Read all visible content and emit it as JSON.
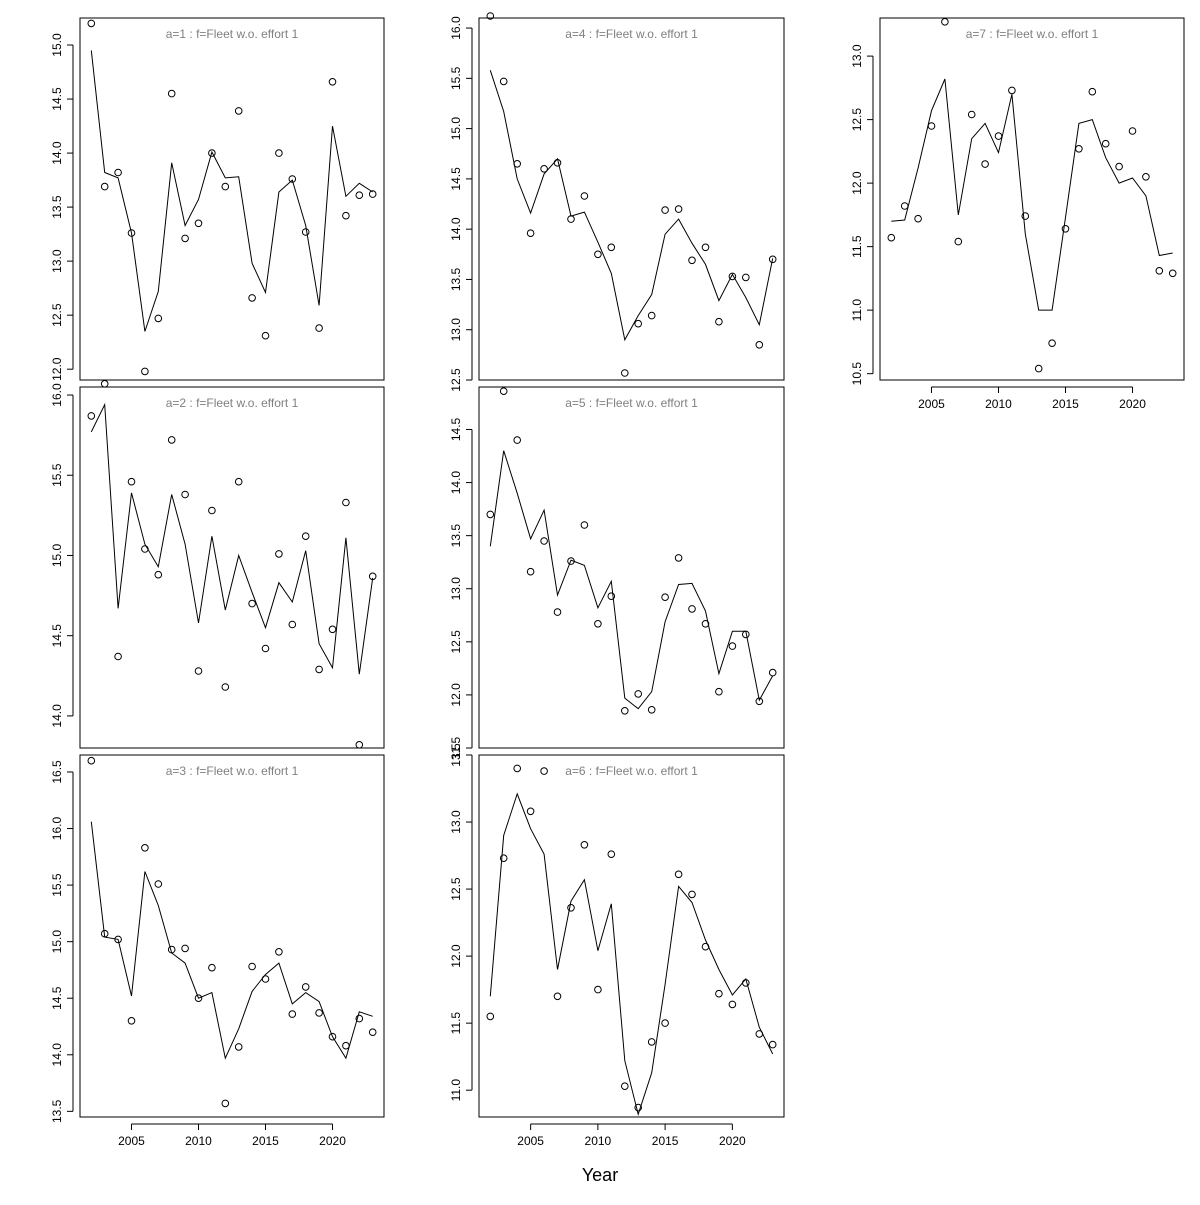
{
  "chart_data": {
    "type": "line",
    "x_axis_label": "Year",
    "x_ticks": [
      2005,
      2010,
      2015,
      2020
    ],
    "years": [
      2002,
      2003,
      2004,
      2005,
      2006,
      2007,
      2008,
      2009,
      2010,
      2011,
      2012,
      2013,
      2014,
      2015,
      2016,
      2017,
      2018,
      2019,
      2020,
      2021,
      2022,
      2023
    ],
    "panels": [
      {
        "title": "a=1  :  f=Fleet w.o. effort 1",
        "ylim": [
          11.9,
          15.25
        ],
        "y_ticks": [
          12.0,
          12.5,
          13.0,
          13.5,
          14.0,
          14.5,
          15.0
        ],
        "y_tick_labels": [
          "12.0",
          "12.5",
          "13.0",
          "13.5",
          "14.0",
          "14.5",
          "15.0"
        ],
        "fitted": [
          14.95,
          13.82,
          13.77,
          13.26,
          12.35,
          12.72,
          13.91,
          13.33,
          13.57,
          14.01,
          13.77,
          13.78,
          12.98,
          12.71,
          13.64,
          13.75,
          13.33,
          12.59,
          14.25,
          13.6,
          13.72,
          13.64
        ],
        "observed": [
          15.2,
          13.69,
          13.82,
          13.26,
          11.98,
          12.47,
          14.55,
          13.21,
          13.35,
          14.0,
          13.69,
          14.39,
          12.66,
          12.31,
          14.0,
          13.76,
          13.27,
          12.38,
          14.66,
          13.42,
          13.61,
          13.62
        ]
      },
      {
        "title": "a=2  :  f=Fleet w.o. effort 1",
        "ylim": [
          13.8,
          16.05
        ],
        "y_ticks": [
          14.0,
          14.5,
          15.0,
          15.5,
          16.0
        ],
        "y_tick_labels": [
          "14.0",
          "14.5",
          "15.0",
          "15.5",
          "16.0"
        ],
        "fitted": [
          15.77,
          15.94,
          14.67,
          15.39,
          15.07,
          14.93,
          15.38,
          15.07,
          14.58,
          15.12,
          14.66,
          15.0,
          14.77,
          14.55,
          14.83,
          14.71,
          15.03,
          14.45,
          14.3,
          15.11,
          14.26,
          14.86
        ],
        "observed": [
          15.87,
          16.07,
          14.37,
          15.46,
          15.04,
          14.88,
          15.72,
          15.38,
          14.28,
          15.28,
          14.18,
          15.46,
          14.7,
          14.42,
          15.01,
          14.57,
          15.12,
          14.29,
          14.54,
          15.33,
          13.82,
          14.87
        ]
      },
      {
        "title": "a=3  :  f=Fleet w.o. effort 1",
        "ylim": [
          13.45,
          16.65
        ],
        "y_ticks": [
          13.5,
          14.0,
          14.5,
          15.0,
          15.5,
          16.0,
          16.5
        ],
        "y_tick_labels": [
          "13.5",
          "14.0",
          "14.5",
          "15.0",
          "15.5",
          "16.0",
          "16.5"
        ],
        "fitted": [
          16.06,
          15.04,
          15.02,
          14.52,
          15.62,
          15.32,
          14.9,
          14.81,
          14.5,
          14.55,
          13.97,
          14.23,
          14.56,
          14.71,
          14.81,
          14.45,
          14.55,
          14.47,
          14.16,
          13.97,
          14.38,
          14.34
        ],
        "observed": [
          16.6,
          15.07,
          15.02,
          14.3,
          15.83,
          15.51,
          14.93,
          14.94,
          14.5,
          14.77,
          13.57,
          14.07,
          14.78,
          14.67,
          14.91,
          14.36,
          14.6,
          14.37,
          14.16,
          14.08,
          14.32,
          14.2
        ]
      },
      {
        "title": "a=4  :  f=Fleet w.o. effort 1",
        "ylim": [
          12.5,
          16.1
        ],
        "y_ticks": [
          12.5,
          13.0,
          13.5,
          14.0,
          14.5,
          15.0,
          15.5,
          16.0
        ],
        "y_tick_labels": [
          "12.5",
          "13.0",
          "13.5",
          "14.0",
          "14.5",
          "15.0",
          "15.5",
          "16.0"
        ],
        "fitted": [
          15.58,
          15.17,
          14.5,
          14.16,
          14.55,
          14.7,
          14.13,
          14.17,
          13.87,
          13.56,
          12.9,
          13.14,
          13.35,
          13.95,
          14.1,
          13.86,
          13.65,
          13.29,
          13.55,
          13.32,
          13.05,
          13.71
        ],
        "observed": [
          16.12,
          15.47,
          14.65,
          13.96,
          14.6,
          14.66,
          14.1,
          14.33,
          13.75,
          13.82,
          12.57,
          13.06,
          13.14,
          14.19,
          14.2,
          13.69,
          13.82,
          13.08,
          13.53,
          13.52,
          12.85,
          13.7
        ]
      },
      {
        "title": "a=5  :  f=Fleet w.o. effort 1",
        "ylim": [
          11.5,
          14.9
        ],
        "y_ticks": [
          11.5,
          12.0,
          12.5,
          13.0,
          13.5,
          14.0,
          14.5
        ],
        "y_tick_labels": [
          "11.5",
          "12.0",
          "12.5",
          "13.0",
          "13.5",
          "14.0",
          "14.5"
        ],
        "fitted": [
          13.4,
          14.3,
          13.9,
          13.47,
          13.74,
          12.94,
          13.27,
          13.22,
          12.82,
          13.07,
          11.97,
          11.87,
          12.03,
          12.69,
          13.04,
          13.05,
          12.79,
          12.2,
          12.6,
          12.6,
          11.95,
          12.18
        ],
        "observed": [
          13.7,
          14.86,
          14.4,
          13.16,
          13.45,
          12.78,
          13.26,
          13.6,
          12.67,
          12.93,
          11.85,
          12.01,
          11.86,
          12.92,
          13.29,
          12.81,
          12.67,
          12.03,
          12.46,
          12.57,
          11.94,
          12.21
        ]
      },
      {
        "title": "a=6  :  f=Fleet w.o. effort 1",
        "ylim": [
          10.8,
          13.5
        ],
        "y_ticks": [
          11.0,
          11.5,
          12.0,
          12.5,
          13.0,
          13.5
        ],
        "y_tick_labels": [
          "11.0",
          "11.5",
          "12.0",
          "12.5",
          "13.0",
          "13.5"
        ],
        "fitted": [
          11.7,
          12.9,
          13.21,
          12.95,
          12.76,
          11.9,
          12.41,
          12.57,
          12.04,
          12.39,
          11.22,
          10.82,
          11.13,
          11.79,
          12.52,
          12.4,
          12.12,
          11.9,
          11.71,
          11.83,
          11.47,
          11.27
        ],
        "observed": [
          11.55,
          12.73,
          13.4,
          13.08,
          13.38,
          11.7,
          12.36,
          12.83,
          11.75,
          12.76,
          11.03,
          10.87,
          11.36,
          11.5,
          12.61,
          12.46,
          12.07,
          11.72,
          11.64,
          11.8,
          11.42,
          11.34
        ]
      },
      {
        "title": "a=7  :  f=Fleet w.o. effort 1",
        "ylim": [
          10.45,
          13.3
        ],
        "y_ticks": [
          10.5,
          11.0,
          11.5,
          12.0,
          12.5,
          13.0
        ],
        "y_tick_labels": [
          "10.5",
          "11.0",
          "11.5",
          "12.0",
          "12.5",
          "13.0"
        ],
        "fitted": [
          11.7,
          11.71,
          12.12,
          12.57,
          12.82,
          11.75,
          12.35,
          12.47,
          12.24,
          12.7,
          11.6,
          11.0,
          11.0,
          11.73,
          12.47,
          12.5,
          12.2,
          12.0,
          12.04,
          11.9,
          11.43,
          11.45
        ],
        "observed": [
          11.57,
          11.82,
          11.72,
          12.45,
          13.27,
          11.54,
          12.54,
          12.15,
          12.37,
          12.73,
          11.74,
          10.54,
          10.74,
          11.64,
          12.27,
          12.72,
          12.31,
          12.13,
          12.41,
          12.05,
          11.31,
          11.29
        ]
      }
    ]
  }
}
